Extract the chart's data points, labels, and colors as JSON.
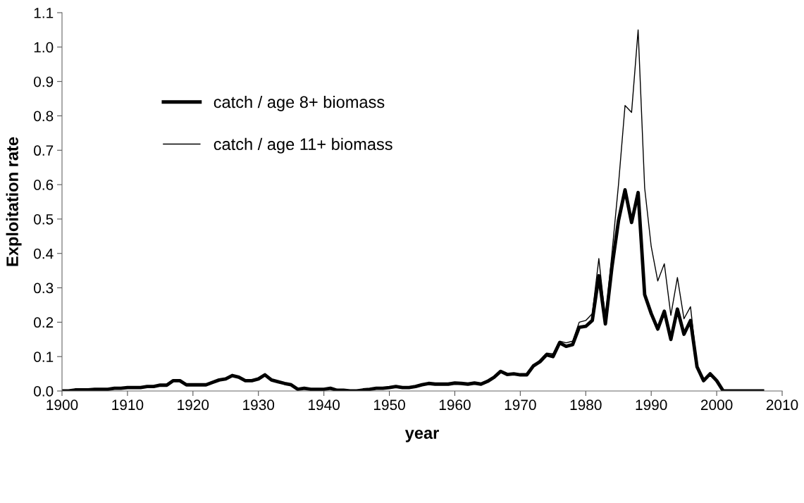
{
  "chart_data": {
    "type": "line",
    "xlabel": "year",
    "ylabel": "Exploitation rate",
    "x": [
      1900,
      1901,
      1902,
      1903,
      1904,
      1905,
      1906,
      1907,
      1908,
      1909,
      1910,
      1911,
      1912,
      1913,
      1914,
      1915,
      1916,
      1917,
      1918,
      1919,
      1920,
      1921,
      1922,
      1923,
      1924,
      1925,
      1926,
      1927,
      1928,
      1929,
      1930,
      1931,
      1932,
      1933,
      1934,
      1935,
      1936,
      1937,
      1938,
      1939,
      1940,
      1941,
      1942,
      1943,
      1944,
      1945,
      1946,
      1947,
      1948,
      1949,
      1950,
      1951,
      1952,
      1953,
      1954,
      1955,
      1956,
      1957,
      1958,
      1959,
      1960,
      1961,
      1962,
      1963,
      1964,
      1965,
      1966,
      1967,
      1968,
      1969,
      1970,
      1971,
      1972,
      1973,
      1974,
      1975,
      1976,
      1977,
      1978,
      1979,
      1980,
      1981,
      1982,
      1983,
      1984,
      1985,
      1986,
      1987,
      1988,
      1989,
      1990,
      1991,
      1992,
      1993,
      1994,
      1995,
      1996,
      1997,
      1998,
      1999,
      2000,
      2001,
      2002,
      2003,
      2004,
      2005,
      2006,
      2007
    ],
    "series": [
      {
        "name": "catch / age 8+ biomass",
        "color": "#000000",
        "values": [
          0.0,
          0.0,
          0.003,
          0.003,
          0.003,
          0.005,
          0.005,
          0.005,
          0.008,
          0.008,
          0.01,
          0.01,
          0.01,
          0.013,
          0.013,
          0.017,
          0.017,
          0.03,
          0.03,
          0.018,
          0.018,
          0.018,
          0.018,
          0.025,
          0.032,
          0.035,
          0.045,
          0.04,
          0.03,
          0.03,
          0.035,
          0.047,
          0.032,
          0.027,
          0.022,
          0.018,
          0.005,
          0.008,
          0.005,
          0.005,
          0.005,
          0.008,
          0.002,
          0.002,
          0.0,
          0.0,
          0.003,
          0.005,
          0.008,
          0.008,
          0.01,
          0.013,
          0.01,
          0.01,
          0.013,
          0.018,
          0.022,
          0.02,
          0.02,
          0.02,
          0.023,
          0.022,
          0.02,
          0.023,
          0.02,
          0.028,
          0.04,
          0.057,
          0.048,
          0.05,
          0.047,
          0.047,
          0.073,
          0.085,
          0.105,
          0.1,
          0.14,
          0.13,
          0.135,
          0.185,
          0.188,
          0.205,
          0.335,
          0.195,
          0.36,
          0.495,
          0.585,
          0.49,
          0.577,
          0.28,
          0.225,
          0.18,
          0.232,
          0.15,
          0.238,
          0.165,
          0.205,
          0.07,
          0.03,
          0.05,
          0.03,
          0.0,
          0.0,
          0.0,
          0.0,
          0.0,
          0.0,
          0.0
        ]
      },
      {
        "name": "catch / age 11+ biomass",
        "color": "#000000",
        "values": [
          0.0,
          0.0,
          0.003,
          0.003,
          0.003,
          0.005,
          0.005,
          0.005,
          0.008,
          0.008,
          0.01,
          0.01,
          0.01,
          0.013,
          0.013,
          0.017,
          0.017,
          0.03,
          0.03,
          0.018,
          0.018,
          0.018,
          0.018,
          0.025,
          0.032,
          0.035,
          0.045,
          0.04,
          0.03,
          0.03,
          0.035,
          0.047,
          0.032,
          0.027,
          0.022,
          0.018,
          0.005,
          0.008,
          0.005,
          0.005,
          0.005,
          0.008,
          0.002,
          0.002,
          0.0,
          0.0,
          0.003,
          0.005,
          0.008,
          0.008,
          0.01,
          0.013,
          0.01,
          0.01,
          0.013,
          0.018,
          0.022,
          0.02,
          0.02,
          0.02,
          0.023,
          0.022,
          0.02,
          0.023,
          0.02,
          0.028,
          0.04,
          0.057,
          0.048,
          0.05,
          0.047,
          0.047,
          0.073,
          0.09,
          0.11,
          0.108,
          0.145,
          0.14,
          0.145,
          0.2,
          0.205,
          0.225,
          0.385,
          0.21,
          0.4,
          0.6,
          0.83,
          0.81,
          1.05,
          0.59,
          0.42,
          0.32,
          0.37,
          0.22,
          0.33,
          0.21,
          0.245,
          0.075,
          0.035,
          0.05,
          0.033,
          0.0,
          0.0,
          0.0,
          0.0,
          0.0,
          0.0,
          0.0
        ]
      }
    ],
    "xlim": [
      1900,
      2010
    ],
    "xticks": [
      1900,
      1910,
      1920,
      1930,
      1940,
      1950,
      1960,
      1970,
      1980,
      1990,
      2000,
      2010
    ],
    "ylim": [
      0,
      1.1
    ],
    "yticks": [
      {
        "value": 0,
        "label": "0.0"
      },
      {
        "value": 0.1,
        "label": "0.1"
      },
      {
        "value": 0.2,
        "label": "0.2"
      },
      {
        "value": 0.3,
        "label": "0.3"
      },
      {
        "value": 0.4,
        "label": "0.4"
      },
      {
        "value": 0.5,
        "label": "0.5"
      },
      {
        "value": 0.6,
        "label": "0.6"
      },
      {
        "value": 0.7,
        "label": "0.7"
      },
      {
        "value": 0.8,
        "label": "0.8"
      },
      {
        "value": 0.9,
        "label": "0.9"
      },
      {
        "value": 1.0,
        "label": "1.0"
      },
      {
        "value": 1.1,
        "label": "1.1"
      }
    ],
    "grid": false,
    "legend": "upper left",
    "marker": "none",
    "line_style": "solid"
  }
}
